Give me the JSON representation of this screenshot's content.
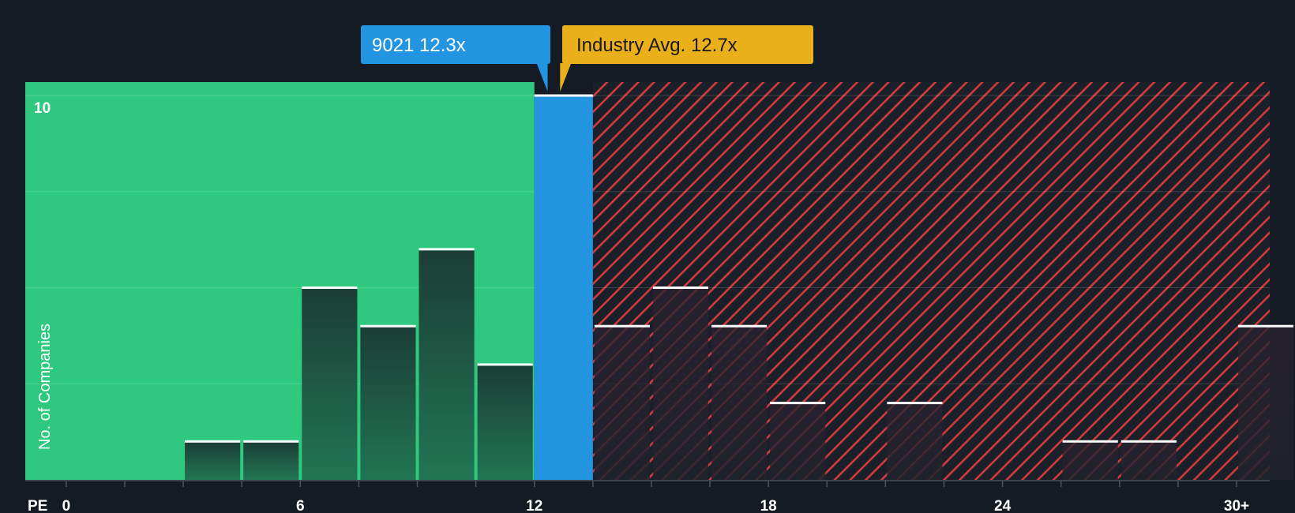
{
  "chart_data": {
    "type": "bar",
    "title": "",
    "xlabel": "PE",
    "ylabel": "No. of Companies",
    "x_tick_labels": [
      "0",
      "6",
      "12",
      "18",
      "24",
      "30+"
    ],
    "x_ticks": [
      0,
      6,
      12,
      18,
      24,
      30
    ],
    "xlim": [
      -1.05,
      30.85
    ],
    "ylim": [
      0,
      10.35
    ],
    "y_tick_labels": [
      "10"
    ],
    "y_ticks": [
      10
    ],
    "gridlines_y": [
      2.5,
      5,
      7.5,
      10
    ],
    "bin_width": 1.5,
    "bins": [
      {
        "start": 3,
        "value": 1
      },
      {
        "start": 4.5,
        "value": 1
      },
      {
        "start": 6,
        "value": 5
      },
      {
        "start": 7.5,
        "value": 4
      },
      {
        "start": 9,
        "value": 6
      },
      {
        "start": 10.5,
        "value": 3
      },
      {
        "start": 12,
        "value": 10,
        "highlight": true
      },
      {
        "start": 13.5,
        "value": 4
      },
      {
        "start": 15,
        "value": 5
      },
      {
        "start": 16.5,
        "value": 4
      },
      {
        "start": 18,
        "value": 2
      },
      {
        "start": 21,
        "value": 2
      },
      {
        "start": 25.5,
        "value": 1
      },
      {
        "start": 27,
        "value": 1
      },
      {
        "start": 30,
        "value": 4
      }
    ],
    "company": {
      "label": "9021 12.3x",
      "value": 12.3
    },
    "industry_avg": {
      "label": "Industry Avg. 12.7x",
      "value": 12.7
    },
    "colors": {
      "background": "#151b24",
      "undervalued_zone": "#2ec97e",
      "overvalued_hatch": "#d13b3b",
      "company_bar": "#2394df",
      "company_label_bg": "#2394df",
      "industry_label_bg": "#eab01c",
      "bar_top": "#ffffff"
    }
  }
}
